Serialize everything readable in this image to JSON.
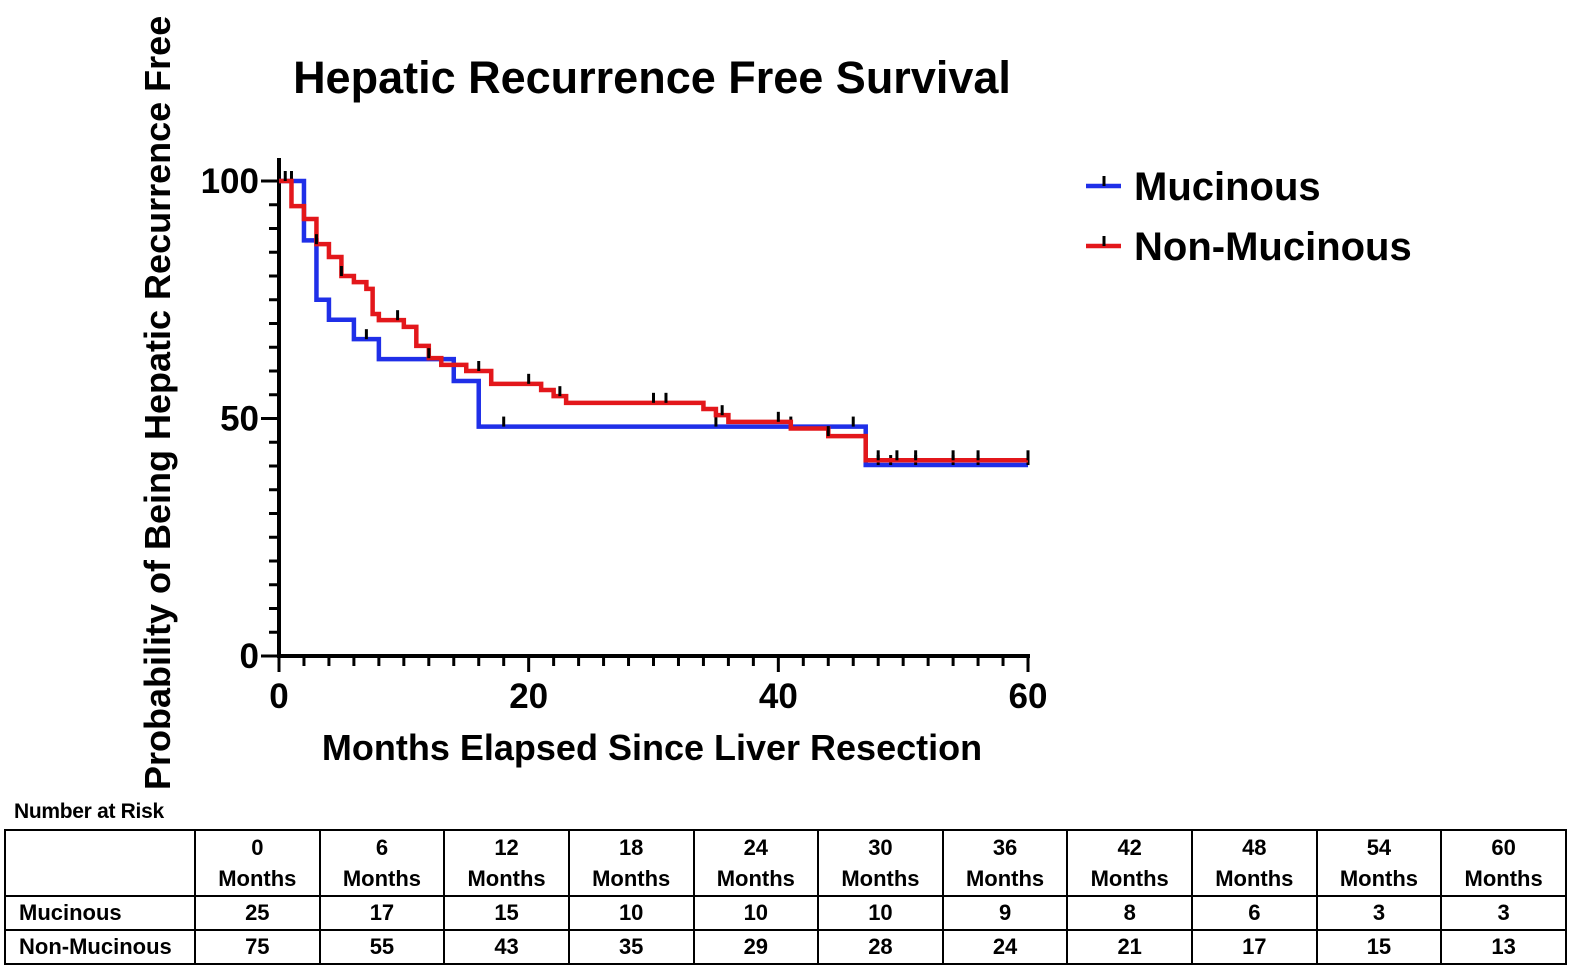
{
  "chart_data": {
    "type": "line",
    "subtype": "kaplan-meier step",
    "title": "Hepatic Recurrence Free Survival",
    "xlabel": "Months Elapsed Since Liver Resection",
    "ylabel": "Probability of Being Hepatic Recurrence Free",
    "xlim": [
      0,
      60
    ],
    "ylim": [
      0,
      100
    ],
    "xticks": [
      0,
      20,
      40,
      60
    ],
    "xtick_labels": [
      "0",
      "20",
      "40",
      "60"
    ],
    "yticks": [
      0,
      50,
      100
    ],
    "ytick_labels": [
      "0",
      "50",
      "100"
    ],
    "x_minor_step": 2,
    "y_minor_step": 5,
    "legend_position": "right",
    "series": [
      {
        "name": "Mucinous",
        "color": "#1f2fe8",
        "steps": [
          [
            0,
            100
          ],
          [
            2,
            87.5
          ],
          [
            3,
            75
          ],
          [
            4,
            70.8
          ],
          [
            6,
            66.7
          ],
          [
            8,
            62.5
          ],
          [
            14,
            57.9
          ],
          [
            16,
            48.3
          ],
          [
            47,
            40.2
          ],
          [
            60,
            40.2
          ]
        ],
        "censor_x": [
          1,
          7,
          18,
          35,
          41,
          46,
          48,
          49,
          51,
          54,
          56,
          60
        ]
      },
      {
        "name": "Non-Mucinous",
        "color": "#e3171b",
        "steps": [
          [
            0,
            100
          ],
          [
            1,
            94.7
          ],
          [
            2,
            92
          ],
          [
            3,
            86.7
          ],
          [
            4,
            84
          ],
          [
            5,
            80
          ],
          [
            6,
            78.7
          ],
          [
            7,
            77.3
          ],
          [
            7.5,
            72
          ],
          [
            8,
            70.7
          ],
          [
            10,
            69.3
          ],
          [
            11,
            65.3
          ],
          [
            12,
            62.7
          ],
          [
            13,
            61.3
          ],
          [
            15,
            60
          ],
          [
            17,
            57.3
          ],
          [
            21,
            56
          ],
          [
            22,
            54.7
          ],
          [
            23,
            53.3
          ],
          [
            34,
            52
          ],
          [
            35,
            50.7
          ],
          [
            36,
            49.3
          ],
          [
            41,
            47.9
          ],
          [
            44,
            46.3
          ],
          [
            47,
            41.2
          ],
          [
            60,
            41.2
          ]
        ],
        "censor_x": [
          0.5,
          3,
          5,
          9.5,
          12,
          16,
          20,
          22.5,
          30,
          31,
          35.5,
          40,
          44,
          48,
          49.5,
          51,
          54,
          56,
          60
        ]
      }
    ]
  },
  "risk_table": {
    "caption": "Number at Risk",
    "columns": [
      {
        "value": "0",
        "unit": "Months"
      },
      {
        "value": "6",
        "unit": "Months"
      },
      {
        "value": "12",
        "unit": "Months"
      },
      {
        "value": "18",
        "unit": "Months"
      },
      {
        "value": "24",
        "unit": "Months"
      },
      {
        "value": "30",
        "unit": "Months"
      },
      {
        "value": "36",
        "unit": "Months"
      },
      {
        "value": "42",
        "unit": "Months"
      },
      {
        "value": "48",
        "unit": "Months"
      },
      {
        "value": "54",
        "unit": "Months"
      },
      {
        "value": "60",
        "unit": "Months"
      }
    ],
    "rows": [
      {
        "name": "Mucinous",
        "values": [
          "25",
          "17",
          "15",
          "10",
          "10",
          "10",
          "9",
          "8",
          "6",
          "3",
          "3"
        ]
      },
      {
        "name": "Non-Mucinous",
        "values": [
          "75",
          "55",
          "43",
          "35",
          "29",
          "28",
          "24",
          "21",
          "17",
          "15",
          "13"
        ]
      }
    ]
  }
}
